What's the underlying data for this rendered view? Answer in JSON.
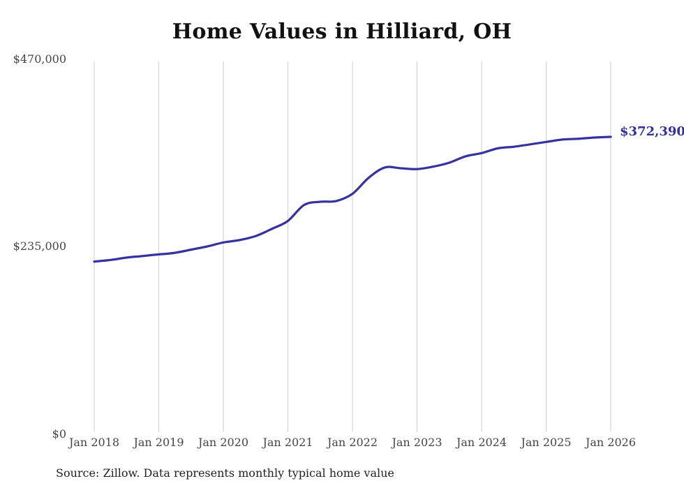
{
  "chart": {
    "title": "Home Values in Hilliard, OH",
    "source_note": "Source: Zillow. Data represents monthly typical home value",
    "end_value_label": "$372,390"
  },
  "chart_data": {
    "type": "line",
    "title": "Home Values in Hilliard, OH",
    "xlabel": "",
    "ylabel": "",
    "ylim": [
      0,
      470000
    ],
    "grid": "vertical-only",
    "legend": "none",
    "colors": {
      "line": "#3632a0",
      "end_label": "#32309f",
      "grid": "#cccccc",
      "axis_text": "#454545",
      "title_text": "#111111",
      "source_text": "#222222",
      "background": "#ffffff"
    },
    "y_ticks": [
      {
        "label": "$0",
        "value": 0
      },
      {
        "label": "$235,000",
        "value": 235000
      },
      {
        "label": "$470,000",
        "value": 470000
      }
    ],
    "x_ticks": [
      {
        "label": "Jan 2018",
        "date": "2018-01"
      },
      {
        "label": "Jan 2019",
        "date": "2019-01"
      },
      {
        "label": "Jan 2020",
        "date": "2020-01"
      },
      {
        "label": "Jan 2021",
        "date": "2021-01"
      },
      {
        "label": "Jan 2022",
        "date": "2022-01"
      },
      {
        "label": "Jan 2023",
        "date": "2023-01"
      },
      {
        "label": "Jan 2024",
        "date": "2024-01"
      },
      {
        "label": "Jan 2025",
        "date": "2025-01"
      },
      {
        "label": "Jan 2026",
        "date": "2026-01"
      }
    ],
    "series": [
      {
        "name": "Typical home value (USD)",
        "points": [
          [
            "2018-01",
            216000
          ],
          [
            "2018-04",
            218000
          ],
          [
            "2018-07",
            221000
          ],
          [
            "2018-10",
            223000
          ],
          [
            "2019-01",
            225000
          ],
          [
            "2019-04",
            227000
          ],
          [
            "2019-07",
            231000
          ],
          [
            "2019-10",
            235000
          ],
          [
            "2020-01",
            240000
          ],
          [
            "2020-04",
            243000
          ],
          [
            "2020-07",
            248000
          ],
          [
            "2020-10",
            257000
          ],
          [
            "2021-01",
            267000
          ],
          [
            "2021-04",
            287000
          ],
          [
            "2021-07",
            291000
          ],
          [
            "2021-10",
            292000
          ],
          [
            "2022-01",
            301000
          ],
          [
            "2022-04",
            321000
          ],
          [
            "2022-07",
            334000
          ],
          [
            "2022-10",
            333000
          ],
          [
            "2023-01",
            332000
          ],
          [
            "2023-04",
            335000
          ],
          [
            "2023-07",
            340000
          ],
          [
            "2023-10",
            348000
          ],
          [
            "2024-01",
            352000
          ],
          [
            "2024-04",
            358000
          ],
          [
            "2024-07",
            360000
          ],
          [
            "2024-10",
            363000
          ],
          [
            "2025-01",
            366000
          ],
          [
            "2025-04",
            369000
          ],
          [
            "2025-07",
            370000
          ],
          [
            "2025-10",
            371500
          ],
          [
            "2026-01",
            372390
          ]
        ]
      }
    ],
    "end_annotation": {
      "label": "$372,390",
      "value": 372390,
      "date": "2026-01"
    },
    "source_note": "Source: Zillow. Data represents monthly typical home value"
  }
}
